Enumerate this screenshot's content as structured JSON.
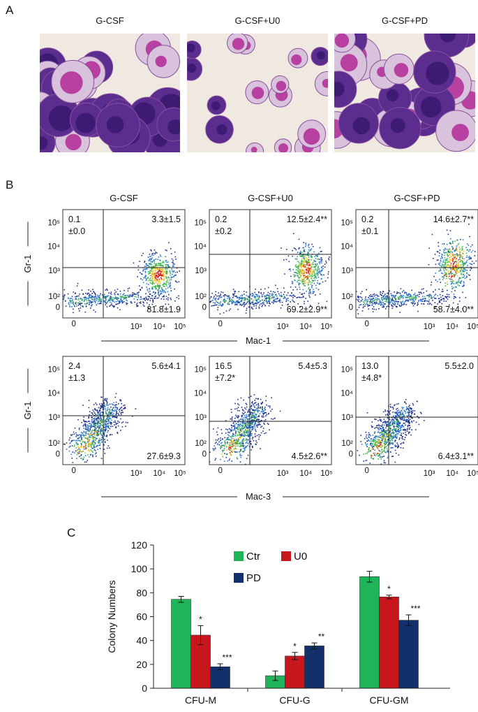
{
  "panel_a": {
    "label": "A",
    "titles": [
      "G-CSF",
      "G-CSF+U0",
      "G-CSF+PD"
    ]
  },
  "panel_b": {
    "label": "B",
    "titles": [
      "G-CSF",
      "G-CSF+U0",
      "G-CSF+PD"
    ],
    "yticks": [
      "10⁵",
      "10⁴",
      "10³",
      "10²",
      "0"
    ],
    "xticks": [
      "0",
      "10³",
      "10⁴",
      "10⁵"
    ],
    "rows": [
      {
        "y_label": "Gr-1",
        "x_label": "Mac-1",
        "plots": [
          {
            "upper_left": [
              "0.1",
              "±0.0"
            ],
            "upper_right": "3.3±1.5",
            "lower_right": "81.8±1.9"
          },
          {
            "upper_left": [
              "0.2",
              "±0.2"
            ],
            "upper_right": "12.5±2.4**",
            "lower_right": "69.2±2.9**"
          },
          {
            "upper_left": [
              "0.2",
              "±0.1"
            ],
            "upper_right": "14.6±2.7**",
            "lower_right": "58.7±4.0**"
          }
        ]
      },
      {
        "y_label": "Gr-1",
        "x_label": "Mac-3",
        "plots": [
          {
            "upper_left": [
              "2.4",
              "±1.3"
            ],
            "upper_right": "5.6±4.1",
            "lower_right": "27.6±9.3"
          },
          {
            "upper_left": [
              "16.5",
              "±7.2*"
            ],
            "upper_right": "5.4±5.3",
            "lower_right": "4.5±2.6**"
          },
          {
            "upper_left": [
              "13.0",
              "±4.8*"
            ],
            "upper_right": "5.5±2.0",
            "lower_right": "6.4±3.1**"
          }
        ]
      }
    ]
  },
  "chart_data": {
    "type": "bar",
    "label": "C",
    "y_label": "Colony Numbers",
    "categories": [
      "CFU-M",
      "CFU-G",
      "CFU-GM"
    ],
    "series": [
      {
        "name": "Ctr",
        "color": "#1fb45a",
        "values": [
          74.5,
          10.5,
          93.5
        ],
        "errors": [
          2.5,
          4,
          4.5
        ]
      },
      {
        "name": "U0",
        "color": "#c8161d",
        "values": [
          44.5,
          27,
          76.5
        ],
        "errors": [
          8,
          3,
          1.5
        ],
        "significance": [
          "*",
          "*",
          "*"
        ]
      },
      {
        "name": "PD",
        "color": "#14306b",
        "values": [
          18,
          35.5,
          57
        ],
        "errors": [
          2.5,
          2.5,
          4.5
        ],
        "significance": [
          "***",
          "**",
          "***"
        ]
      }
    ],
    "ylim": [
      0,
      120
    ],
    "yticks": [
      0,
      20,
      40,
      60,
      80,
      100,
      120
    ]
  }
}
